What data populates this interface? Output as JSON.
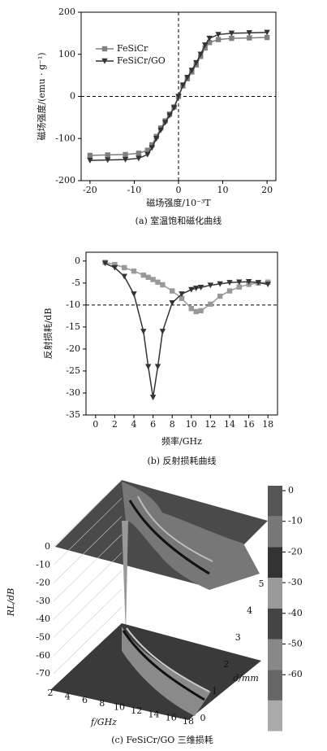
{
  "chart_data": [
    {
      "type": "line",
      "caption": "(a) 室温饱和磁化曲线",
      "x_label": "磁场强度/10⁻³T",
      "y_label": "磁场强度/(emu · g⁻¹)",
      "xlim": [
        -22,
        22
      ],
      "xticks": [
        -20,
        -10,
        0,
        10,
        20
      ],
      "ylim": [
        -200,
        200
      ],
      "yticks": [
        -200,
        -100,
        0,
        100,
        200
      ],
      "hlines": [
        0
      ],
      "vlines": [
        0
      ],
      "legend": "upper left",
      "x": [
        -20,
        -16,
        -12,
        -9,
        -7,
        -6,
        -5,
        -4,
        -3,
        -2,
        -1,
        0,
        1,
        2,
        3,
        4,
        5,
        6,
        7,
        9,
        12,
        16,
        20
      ],
      "series": [
        {
          "name": "FeSiCr",
          "color": "#808080",
          "marker": "square",
          "values": [
            -140,
            -139,
            -138,
            -135,
            -128,
            -115,
            -95,
            -75,
            -58,
            -42,
            -25,
            0,
            25,
            42,
            58,
            75,
            95,
            115,
            128,
            135,
            138,
            139,
            140
          ]
        },
        {
          "name": "FeSiCr/GO",
          "color": "#333333",
          "marker": "triangle-down",
          "values": [
            -152,
            -151,
            -150,
            -147,
            -138,
            -122,
            -100,
            -80,
            -62,
            -45,
            -27,
            0,
            27,
            45,
            62,
            80,
            100,
            122,
            138,
            147,
            150,
            151,
            152
          ]
        }
      ]
    },
    {
      "type": "line",
      "caption": "(b) 反射损耗曲线",
      "x_label": "频率/GHz",
      "y_label": "反射损耗/dB",
      "xlim": [
        -1,
        19
      ],
      "xticks": [
        0,
        2,
        4,
        6,
        8,
        10,
        12,
        14,
        16,
        18
      ],
      "ylim": [
        -35,
        2
      ],
      "yticks": [
        0,
        -5,
        -10,
        -15,
        -20,
        -25,
        -30,
        -35
      ],
      "hlines": [
        -10
      ],
      "x": [
        1,
        2,
        3,
        4,
        5,
        5.5,
        6,
        6.5,
        7,
        8,
        9,
        10,
        10.5,
        11,
        12,
        13,
        14,
        15,
        16,
        17,
        18
      ],
      "series": [
        {
          "color": "#999999",
          "marker": "square",
          "values": [
            -0.3,
            -0.8,
            -1.5,
            -2.3,
            -3.2,
            -3.7,
            -4.2,
            -4.8,
            -5.4,
            -6.8,
            -8.5,
            -10.8,
            -11.5,
            -11.3,
            -9.8,
            -8,
            -6.8,
            -5.9,
            -5.3,
            -5,
            -4.8
          ]
        },
        {
          "color": "#333333",
          "marker": "triangle-down",
          "values": [
            -0.5,
            -1.5,
            -3.5,
            -7.5,
            -16,
            -24,
            -31,
            -24,
            -16,
            -9.5,
            -7.5,
            -6.5,
            -6.2,
            -6,
            -5.5,
            -5.2,
            -4.9,
            -4.8,
            -4.7,
            -4.9,
            -5.3
          ]
        }
      ]
    },
    {
      "type": "surface",
      "caption": "(c) FeSiCr/GO 三维损耗",
      "x_label": "f/GHz",
      "y_label": "d/mm",
      "z_label": "RL/dB",
      "xticks": [
        2,
        4,
        6,
        8,
        10,
        12,
        14,
        16,
        18
      ],
      "yticks": [
        0,
        1,
        2,
        3,
        4,
        5
      ],
      "zticks": [
        0,
        -10,
        -20,
        -30,
        -40,
        -50,
        -60,
        -70
      ],
      "colorbar_ticks": [
        0,
        -10,
        -20,
        -30,
        -40,
        -50,
        -60
      ]
    }
  ]
}
